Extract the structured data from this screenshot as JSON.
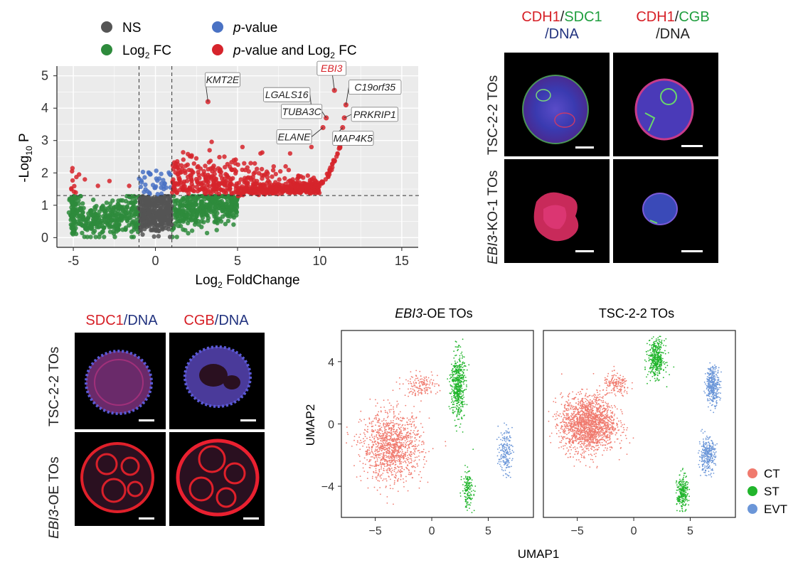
{
  "colors": {
    "ns": "#555555",
    "fc": "#2e8b3c",
    "pval": "#4a72c4",
    "both": "#d6242c",
    "ct": "#f07a6e",
    "st": "#21b52c",
    "evt": "#6b96d8",
    "red_text": "#d61f26",
    "green_text": "#1f9e3e",
    "blue_text": "#22337f"
  },
  "volcano": {
    "legend": {
      "ns": "NS",
      "pval_italic": "p",
      "pval_rest": "-value",
      "fc_main": "Log",
      "fc_sub": "2",
      "fc_end": " FC",
      "both_italic": "p",
      "both_mid": "-value and Log",
      "both_sub": "2",
      "both_end": " FC"
    },
    "ylabel_prefix": "-Log",
    "ylabel_sub": "10",
    "ylabel_end": " P",
    "xlabel_main": "Log",
    "xlabel_sub": "2",
    "xlabel_end": " FoldChange",
    "xticks": [
      "-5",
      "0",
      "5",
      "10",
      "15"
    ],
    "yticks": [
      "0",
      "1",
      "2",
      "3",
      "4",
      "5"
    ],
    "genes": [
      "KMT2E",
      "LGALS16",
      "EBI3",
      "C19orf35",
      "TUBA3C",
      "PRKRIP1",
      "ELANE",
      "MAP4K5"
    ]
  },
  "chart_data": [
    {
      "type": "scatter",
      "title": "",
      "xlabel": "Log2 FoldChange",
      "ylabel": "-Log10 P",
      "xlim": [
        -6,
        16
      ],
      "ylim": [
        -0.3,
        5.3
      ],
      "thresholds": {
        "x": [
          -1,
          1
        ],
        "y": 1.3
      },
      "legend": [
        "NS",
        "Log2 FC",
        "p-value",
        "p-value and Log2 FC"
      ],
      "labeled_points": [
        {
          "gene": "KMT2E",
          "x": 3.2,
          "y": 4.2
        },
        {
          "gene": "LGALS16",
          "x": 9.5,
          "y": 4.0
        },
        {
          "gene": "EBI3",
          "x": 10.9,
          "y": 4.55
        },
        {
          "gene": "C19orf35",
          "x": 11.6,
          "y": 4.1
        },
        {
          "gene": "TUBA3C",
          "x": 10.4,
          "y": 3.7
        },
        {
          "gene": "PRKRIP1",
          "x": 11.5,
          "y": 3.7
        },
        {
          "gene": "ELANE",
          "x": 10.2,
          "y": 3.4
        },
        {
          "gene": "MAP4K5",
          "x": 11.4,
          "y": 3.4
        }
      ]
    },
    {
      "type": "scatter",
      "title": "EBI3-OE TOs",
      "xlabel": "UMAP1",
      "ylabel": "UMAP2",
      "xlim": [
        -8,
        9
      ],
      "ylim": [
        -6,
        6
      ],
      "xticks": [
        "−5",
        "0",
        "5"
      ],
      "yticks": [
        "4",
        "0",
        "−4"
      ],
      "series": [
        {
          "name": "CT",
          "clusters": [
            {
              "cx": -3.5,
              "cy": -1.5,
              "sx": 2.2,
              "sy": 1.8,
              "n": 1200
            },
            {
              "cx": -1.0,
              "cy": 2.5,
              "sx": 1.3,
              "sy": 0.6,
              "n": 150
            }
          ]
        },
        {
          "name": "ST",
          "clusters": [
            {
              "cx": 2.3,
              "cy": 2.5,
              "sx": 0.5,
              "sy": 1.8,
              "n": 500
            },
            {
              "cx": 3.2,
              "cy": -4.2,
              "sx": 0.4,
              "sy": 1.0,
              "n": 150
            }
          ]
        },
        {
          "name": "EVT",
          "clusters": [
            {
              "cx": 6.5,
              "cy": -1.8,
              "sx": 0.5,
              "sy": 1.2,
              "n": 180
            }
          ]
        }
      ]
    },
    {
      "type": "scatter",
      "title": "TSC-2-2 TOs",
      "xlabel": "UMAP1",
      "ylabel": "UMAP2",
      "xlim": [
        -8,
        9
      ],
      "ylim": [
        -6,
        6
      ],
      "xticks": [
        "−5",
        "0",
        "5"
      ],
      "yticks": [
        "4",
        "0",
        "−4"
      ],
      "series": [
        {
          "name": "CT",
          "clusters": [
            {
              "cx": -4.0,
              "cy": 0.0,
              "sx": 2.0,
              "sy": 1.5,
              "n": 1800
            },
            {
              "cx": -1.5,
              "cy": 2.5,
              "sx": 1.0,
              "sy": 0.6,
              "n": 150
            }
          ]
        },
        {
          "name": "ST",
          "clusters": [
            {
              "cx": 2.0,
              "cy": 4.2,
              "sx": 0.6,
              "sy": 1.0,
              "n": 400
            },
            {
              "cx": 4.3,
              "cy": -4.5,
              "sx": 0.4,
              "sy": 1.0,
              "n": 250
            }
          ]
        },
        {
          "name": "EVT",
          "clusters": [
            {
              "cx": 7.0,
              "cy": 2.5,
              "sx": 0.5,
              "sy": 1.0,
              "n": 350
            },
            {
              "cx": 6.5,
              "cy": -2.0,
              "sx": 0.6,
              "sy": 0.9,
              "n": 300
            }
          ]
        }
      ]
    }
  ],
  "umap": {
    "title_left_italic": "EBI3",
    "title_left_rest": "-OE TOs",
    "title_right": "TSC-2-2 TOs",
    "xlabel": "UMAP1",
    "ylabel": "UMAP2",
    "xticks": [
      "−5",
      "0",
      "5"
    ],
    "yticks": [
      "4",
      "0",
      "−4"
    ],
    "legend": [
      "CT",
      "ST",
      "EVT"
    ]
  },
  "panel_b": {
    "col1_a": "CDH1",
    "col1_sep": "/",
    "col1_b": "SDC1",
    "col1_line2": "/DNA",
    "col2_a": "CDH1",
    "col2_sep": "/",
    "col2_b": "CGB",
    "col2_line2": "/DNA",
    "row1": "TSC-2-2 TOs",
    "row2_italic": "EBI3",
    "row2_rest": "-KO-1 TOs"
  },
  "panel_c": {
    "col1_a": "SDC1",
    "col1_b": "/DNA",
    "col2_a": "CGB",
    "col2_b": "/DNA",
    "row1": "TSC-2-2 TOs",
    "row2_italic": "EBI3",
    "row2_rest": "-OE TOs"
  }
}
